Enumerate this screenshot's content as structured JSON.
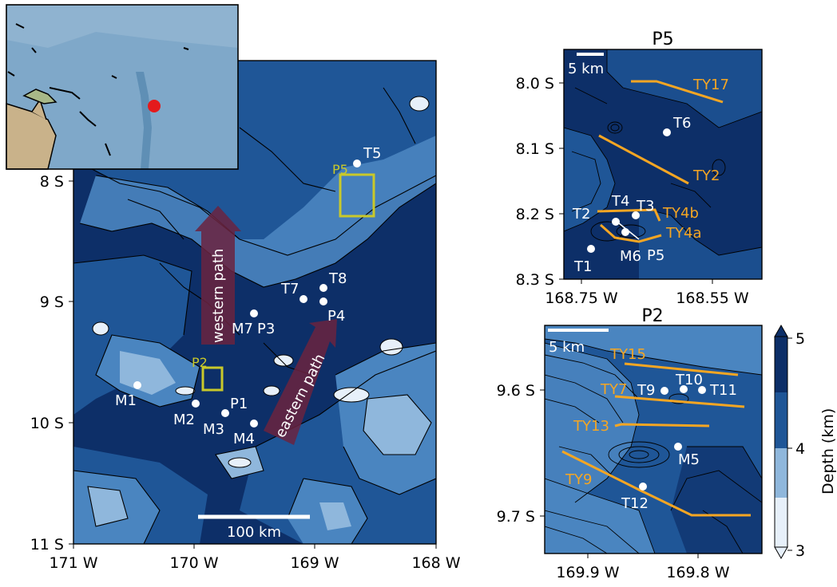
{
  "colors": {
    "deep": "#0d2f68",
    "mid": "#1f5697",
    "shallow": "#4a85c0",
    "lighter": "#8fb7dc",
    "lightest": "#e7f0fa",
    "path": "#6b2340",
    "track": "#f5a623",
    "box": "#c9c92a",
    "highlight": "#e41a1c"
  },
  "main_map": {
    "x_ticks": [
      "171 W",
      "170 W",
      "169 W",
      "168 W"
    ],
    "y_ticks": [
      "8 S",
      "9 S",
      "10 S",
      "11 S"
    ],
    "scalebar_label": "100 km",
    "paths": {
      "western": "western path",
      "eastern": "eastern path"
    },
    "boxes": {
      "p5": "P5",
      "p2": "P2"
    },
    "stations": [
      {
        "id": "T5",
        "label": "T5"
      },
      {
        "id": "T7",
        "label": "T7"
      },
      {
        "id": "T8",
        "label": "T8"
      },
      {
        "id": "P4",
        "label": "P4"
      },
      {
        "id": "M7",
        "label": "M7"
      },
      {
        "id": "P3",
        "label": "P3"
      },
      {
        "id": "M1",
        "label": "M1"
      },
      {
        "id": "M2",
        "label": "M2"
      },
      {
        "id": "M3",
        "label": "M3"
      },
      {
        "id": "P1",
        "label": "P1"
      },
      {
        "id": "M4",
        "label": "M4"
      }
    ]
  },
  "inset_p5": {
    "title": "P5",
    "x_ticks": [
      "168.75 W",
      "168.55 W"
    ],
    "y_ticks": [
      "8.0 S",
      "8.1 S",
      "8.2 S",
      "8.3 S"
    ],
    "scalebar_label": "5 km",
    "tracks": [
      "TY17",
      "TY2",
      "TY4b",
      "TY4a"
    ],
    "stations": [
      "T6",
      "T4",
      "T3",
      "T2",
      "T1",
      "M6",
      "P5"
    ]
  },
  "inset_p2": {
    "title": "P2",
    "x_ticks": [
      "169.9 W",
      "169.8 W"
    ],
    "y_ticks": [
      "9.6 S",
      "9.7 S"
    ],
    "scalebar_label": "5 km",
    "tracks": [
      "TY15",
      "TY7",
      "TY13",
      "TY9"
    ],
    "stations": [
      "T9",
      "T10",
      "T11",
      "M5",
      "T12"
    ]
  },
  "colorbar": {
    "label": "Depth (km)",
    "ticks": [
      "5",
      "4",
      "3"
    ],
    "range_km": [
      3,
      5
    ]
  }
}
